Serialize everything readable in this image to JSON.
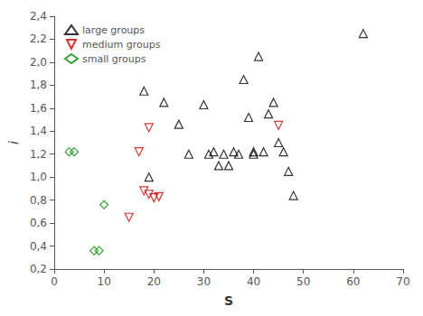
{
  "chart_data": {
    "type": "scatter",
    "xlabel": "S",
    "ylabel": "i",
    "xlim": [
      0,
      70
    ],
    "ylim": [
      0.2,
      2.4
    ],
    "xticks": [
      0,
      10,
      20,
      30,
      40,
      50,
      60,
      70
    ],
    "yticks": [
      {
        "value": 0.2,
        "label": "0,2"
      },
      {
        "value": 0.4,
        "label": "0,4"
      },
      {
        "value": 0.6,
        "label": "0,6"
      },
      {
        "value": 0.8,
        "label": "0,8"
      },
      {
        "value": 1.0,
        "label": "1,0"
      },
      {
        "value": 1.2,
        "label": "1,2"
      },
      {
        "value": 1.4,
        "label": "1,4"
      },
      {
        "value": 1.6,
        "label": "1,6"
      },
      {
        "value": 1.8,
        "label": "1,8"
      },
      {
        "value": 2.0,
        "label": "2,0"
      },
      {
        "value": 2.2,
        "label": "2,2"
      },
      {
        "value": 2.4,
        "label": "2,4"
      }
    ],
    "grid": false,
    "legend": "upper left",
    "series": [
      {
        "name": "large groups",
        "color": "#000000",
        "marker": "triangle-up",
        "x": [
          18,
          19,
          22,
          25,
          27,
          30,
          31,
          32,
          33,
          34,
          35,
          36,
          37,
          38,
          39,
          40,
          40,
          41,
          42,
          43,
          44,
          45,
          46,
          47,
          48,
          62
        ],
        "values": [
          1.75,
          1.0,
          1.65,
          1.46,
          1.2,
          1.63,
          1.2,
          1.22,
          1.1,
          1.2,
          1.1,
          1.22,
          1.2,
          1.85,
          1.52,
          1.22,
          1.2,
          2.05,
          1.22,
          1.55,
          1.65,
          1.3,
          1.22,
          1.05,
          0.84,
          2.25
        ]
      },
      {
        "name": "medium groups",
        "color": "#cc0000",
        "marker": "triangle-down",
        "x": [
          15,
          17,
          18,
          19,
          19,
          20,
          21,
          45
        ],
        "values": [
          0.65,
          1.22,
          0.88,
          1.43,
          0.85,
          0.82,
          0.83,
          1.45
        ]
      },
      {
        "name": "small groups",
        "color": "#008800",
        "marker": "diamond",
        "x": [
          3,
          4,
          8,
          9,
          10
        ],
        "values": [
          1.22,
          1.22,
          0.36,
          0.36,
          0.76
        ]
      }
    ]
  }
}
